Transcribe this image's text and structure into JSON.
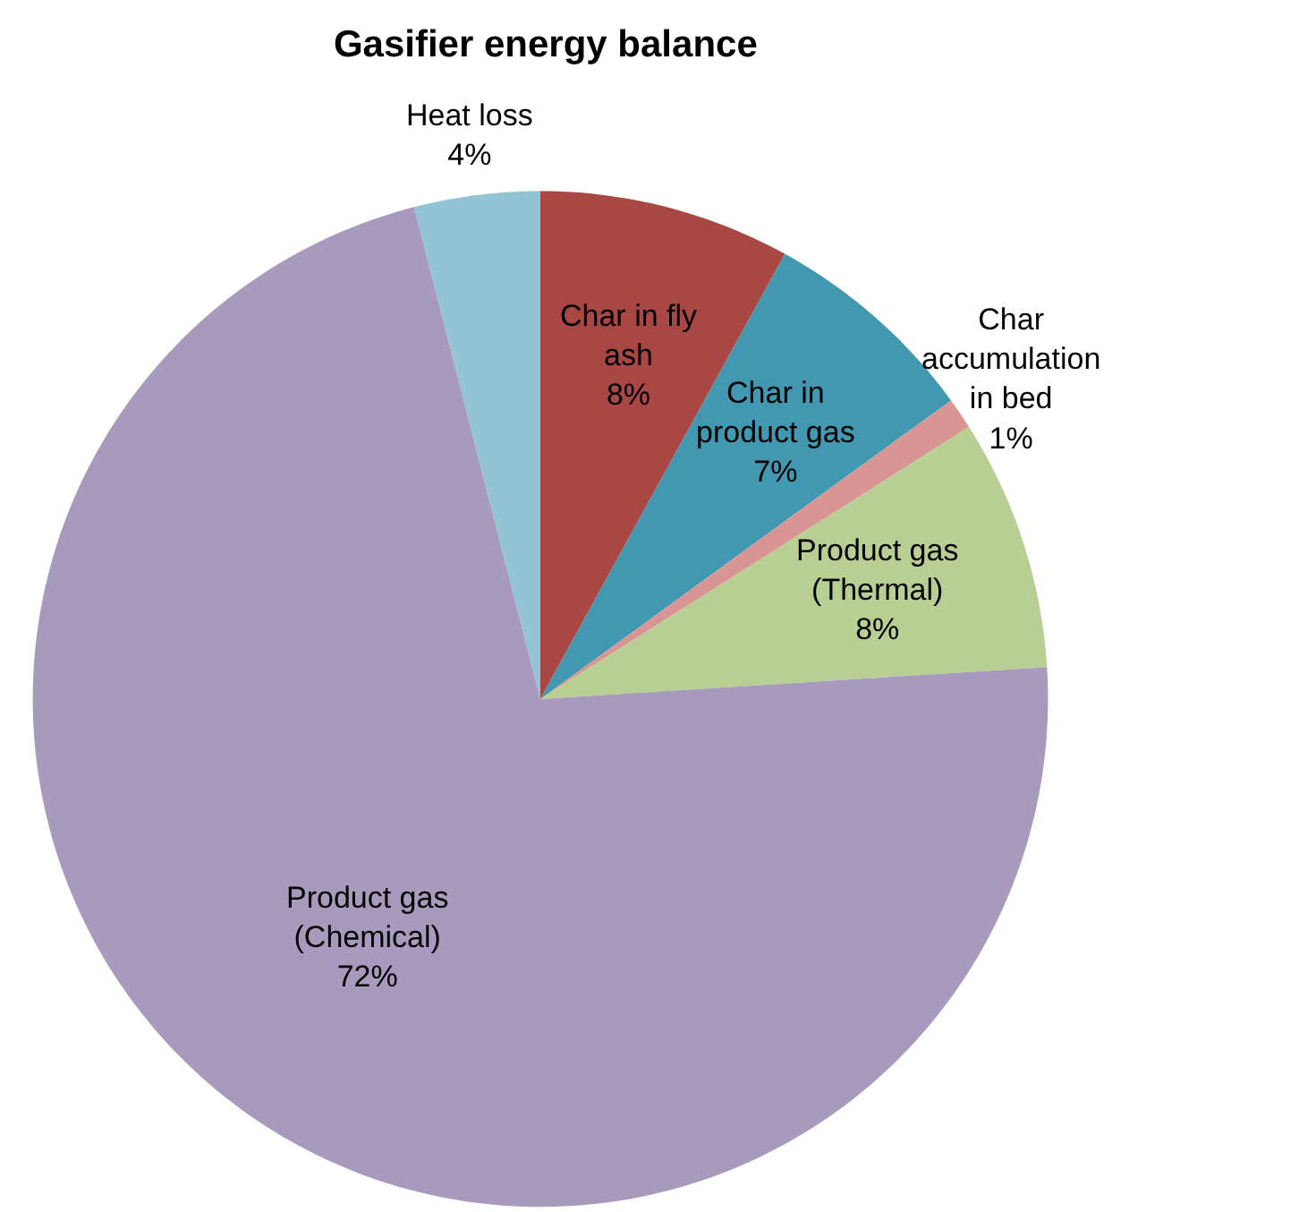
{
  "chart_data": {
    "type": "pie",
    "title": "Gasifier energy balance",
    "categories": [
      "Char in fly ash",
      "Char in product gas",
      "Char accumulation in bed",
      "Product gas (Thermal)",
      "Product gas (Chemical)",
      "Heat loss"
    ],
    "values": [
      8,
      7,
      1,
      8,
      72,
      4
    ],
    "value_labels": [
      "8%",
      "7%",
      "1%",
      "8%",
      "72%",
      "4%"
    ],
    "colors": [
      "#a84744",
      "#4198b0",
      "#d99594",
      "#b8cf93",
      "#a89abd",
      "#93c4d6"
    ],
    "legend": false
  }
}
